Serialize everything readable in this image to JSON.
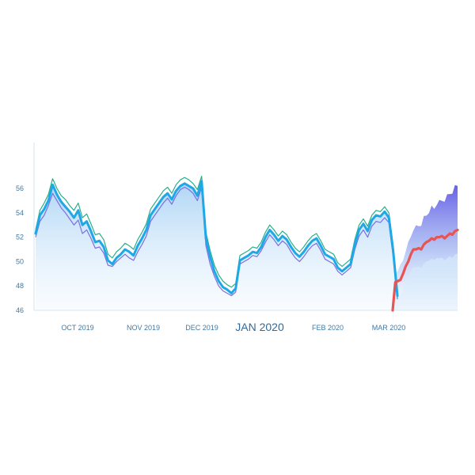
{
  "chart_data": {
    "type": "line",
    "title": "",
    "xlabel": "",
    "ylabel": "",
    "ylim": [
      46,
      58
    ],
    "yticks": [
      "56",
      "54",
      "52",
      "50",
      "48",
      "46"
    ],
    "xticks": [
      {
        "label": "OCT 2019",
        "major": false
      },
      {
        "label": "NOV 2019",
        "major": false
      },
      {
        "label": "DEC 2019",
        "major": false
      },
      {
        "label": "JAN 2020",
        "major": true
      },
      {
        "label": "FEB 2020",
        "major": false
      },
      {
        "label": "MAR 2020",
        "major": false
      }
    ],
    "grid": false,
    "legend": "none",
    "colors": {
      "main_line": "#1fa8e6",
      "purple_line": "#7b6fe0",
      "green_line": "#27b08a",
      "forecast_line": "#e85454",
      "area_fill": "#bcdcf7",
      "band_outer": "#6b63e6",
      "band_inner": "#d3e8fb",
      "axis": "#d6e6f2"
    },
    "series": [
      {
        "values": [
          52.3,
          53.8,
          54.3,
          55.0,
          56.3,
          55.5,
          54.9,
          54.5,
          54.1,
          53.6,
          54.2,
          53.0,
          53.3,
          52.5,
          51.6,
          51.7,
          51.2,
          50.1,
          49.8,
          50.3,
          50.6,
          51.0,
          50.8,
          50.5,
          51.3,
          51.9,
          52.6,
          53.8,
          54.3,
          54.8,
          55.3,
          55.6,
          55.1,
          55.8,
          56.2,
          56.4,
          56.2,
          56.0,
          55.4,
          56.6,
          51.9,
          50.4,
          49.2,
          48.4,
          47.9,
          47.7,
          47.4,
          47.8,
          50.1,
          50.3,
          50.5,
          50.8,
          50.7,
          51.2,
          52.0,
          52.6,
          52.2,
          51.7,
          52.1,
          51.8,
          51.2,
          50.7,
          50.4,
          50.8,
          51.3,
          51.7,
          51.9,
          51.3,
          50.6,
          50.4,
          50.2,
          49.5,
          49.2,
          49.5,
          49.8,
          51.4,
          52.6,
          53.1,
          52.5,
          53.4,
          53.8,
          53.7,
          54.1,
          53.6,
          50.9,
          47.2
        ]
      },
      {
        "values": [
          52.0,
          53.3,
          53.8,
          54.6,
          55.6,
          55.0,
          54.4,
          54.0,
          53.5,
          53.0,
          53.4,
          52.3,
          52.6,
          51.9,
          51.1,
          51.2,
          50.7,
          49.7,
          49.6,
          50.0,
          50.3,
          50.6,
          50.3,
          50.1,
          50.8,
          51.4,
          52.1,
          53.3,
          53.8,
          54.3,
          54.8,
          55.2,
          54.7,
          55.4,
          55.9,
          56.1,
          55.9,
          55.6,
          55.0,
          56.1,
          51.3,
          49.8,
          48.8,
          48.0,
          47.6,
          47.4,
          47.2,
          47.5,
          49.8,
          50.0,
          50.2,
          50.5,
          50.4,
          50.9,
          51.6,
          52.2,
          51.8,
          51.3,
          51.7,
          51.4,
          50.8,
          50.3,
          50.0,
          50.4,
          50.9,
          51.3,
          51.5,
          50.9,
          50.2,
          50.0,
          49.8,
          49.2,
          48.9,
          49.2,
          49.5,
          51.0,
          52.1,
          52.6,
          52.0,
          52.9,
          53.3,
          53.2,
          53.6,
          53.2,
          50.4,
          46.9
        ]
      },
      {
        "values": [
          52.6,
          54.2,
          54.8,
          55.5,
          56.8,
          56.0,
          55.4,
          55.1,
          54.6,
          54.2,
          54.8,
          53.6,
          53.9,
          53.1,
          52.2,
          52.3,
          51.8,
          50.6,
          50.3,
          50.8,
          51.1,
          51.5,
          51.3,
          51.0,
          51.8,
          52.4,
          53.1,
          54.3,
          54.8,
          55.3,
          55.8,
          56.1,
          55.6,
          56.3,
          56.7,
          56.9,
          56.7,
          56.4,
          55.9,
          57.0,
          52.4,
          50.9,
          49.7,
          48.9,
          48.4,
          48.1,
          47.9,
          48.2,
          50.5,
          50.7,
          50.9,
          51.2,
          51.1,
          51.6,
          52.4,
          53.0,
          52.6,
          52.1,
          52.5,
          52.2,
          51.6,
          51.1,
          50.8,
          51.2,
          51.7,
          52.1,
          52.3,
          51.7,
          51.0,
          50.8,
          50.6,
          49.9,
          49.6,
          49.9,
          50.2,
          51.8,
          53.0,
          53.5,
          52.9,
          53.8,
          54.2,
          54.1,
          54.5,
          54.0,
          51.3,
          47.6
        ]
      },
      {
        "values": [
          46.0,
          48.3,
          48.4,
          48.5,
          49.0,
          49.6,
          50.0,
          50.6,
          51.0,
          51.0,
          51.1,
          51.0,
          51.4,
          51.6,
          51.7,
          51.9,
          51.8,
          52.0,
          52.0,
          52.1,
          51.9,
          52.1,
          52.3,
          52.2,
          52.5,
          52.6
        ]
      }
    ]
  }
}
